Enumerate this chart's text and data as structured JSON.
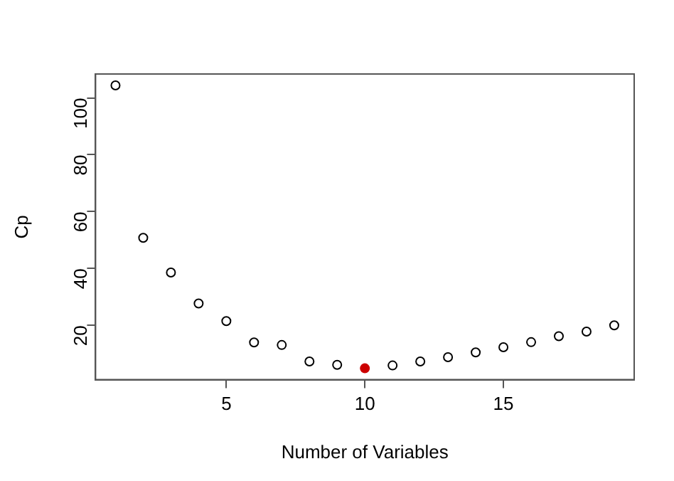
{
  "chart_data": {
    "type": "scatter",
    "xlabel": "Number of Variables",
    "ylabel": "Cp",
    "xlim": [
      0.28,
      19.72
    ],
    "ylim": [
      0.9,
      108.4
    ],
    "xticks": [
      5,
      10,
      15
    ],
    "yticks": [
      20,
      40,
      60,
      80,
      100
    ],
    "grid": false,
    "legend": false,
    "marker": "circle",
    "series": [
      {
        "color": "#000000",
        "x": [
          1,
          2,
          3,
          4,
          5,
          6,
          7,
          8,
          9,
          11,
          12,
          13,
          14,
          15,
          16,
          17,
          18,
          19
        ],
        "values": [
          104.4,
          50.8,
          38.6,
          27.7,
          21.5,
          14.0,
          13.1,
          7.3,
          6.1,
          5.9,
          7.3,
          8.8,
          10.5,
          12.3,
          14.1,
          16.2,
          17.8,
          20.0
        ]
      },
      {
        "color": "#cc0000",
        "x": [
          10
        ],
        "values": [
          4.9
        ]
      }
    ]
  }
}
